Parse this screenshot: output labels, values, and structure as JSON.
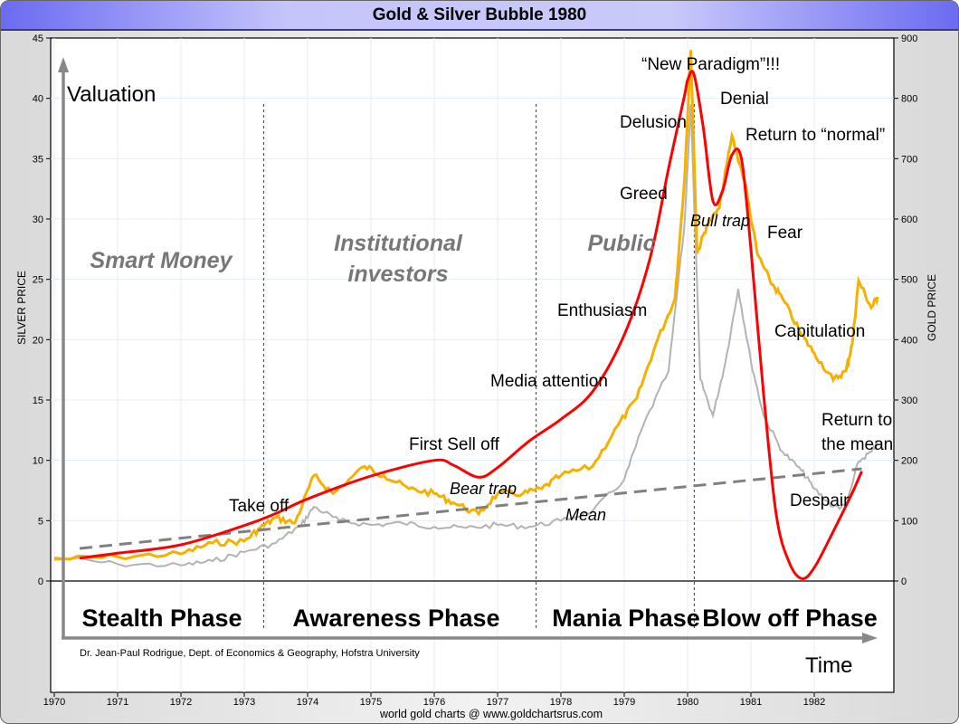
{
  "window": {
    "title": "Gold & Silver Bubble 1980"
  },
  "footer": {
    "source": "world gold charts @ www.goldchartsrus.com"
  },
  "chart_data": {
    "type": "line",
    "title": "Gold & Silver Bubble 1980",
    "xlabel": "",
    "ylabel_left": "SILVER PRICE",
    "ylabel_right": "GOLD PRICE",
    "xlim": [
      1970,
      1983
    ],
    "ylim_left": [
      0,
      45
    ],
    "ylim_right": [
      0,
      900
    ],
    "x_ticks": [
      "1970",
      "1971",
      "1972",
      "1973",
      "1974",
      "1975",
      "1976",
      "1977",
      "1978",
      "1979",
      "1980",
      "1981",
      "1982"
    ],
    "y_ticks_left": [
      "0",
      "5",
      "10",
      "15",
      "20",
      "25",
      "30",
      "35",
      "40",
      "45"
    ],
    "y_ticks_right": [
      "0",
      "100",
      "200",
      "300",
      "400",
      "500",
      "600",
      "700",
      "800",
      "900"
    ],
    "grid": true,
    "series": [
      {
        "name": "Gold",
        "axis": "right",
        "color": "#f5b000",
        "x": [
          1970.0,
          1971.0,
          1972.0,
          1972.5,
          1973.0,
          1973.25,
          1973.5,
          1973.8,
          1974.1,
          1974.4,
          1974.9,
          1975.2,
          1975.6,
          1976.0,
          1976.3,
          1976.7,
          1977.0,
          1977.4,
          1977.7,
          1978.0,
          1978.5,
          1978.9,
          1979.2,
          1979.5,
          1979.8,
          1979.95,
          1980.05,
          1980.15,
          1980.3,
          1980.5,
          1980.7,
          1980.9,
          1981.1,
          1981.3,
          1981.5,
          1981.8,
          1982.0,
          1982.3,
          1982.5,
          1982.6,
          1982.7,
          1982.9,
          1983.0
        ],
        "values": [
          36,
          40,
          45,
          63,
          66,
          88,
          105,
          96,
          175,
          145,
          190,
          175,
          153,
          145,
          130,
          111,
          145,
          145,
          153,
          175,
          190,
          258,
          303,
          393,
          468,
          663,
          880,
          543,
          588,
          618,
          738,
          663,
          543,
          498,
          468,
          408,
          378,
          333,
          348,
          393,
          498,
          453,
          471
        ]
      },
      {
        "name": "Silver",
        "axis": "left",
        "color": "#b3b3b3",
        "x": [
          1970.0,
          1971.0,
          1972.0,
          1972.5,
          1973.0,
          1973.5,
          1973.9,
          1974.1,
          1974.5,
          1975.0,
          1975.5,
          1976.0,
          1976.5,
          1977.0,
          1977.5,
          1978.0,
          1978.5,
          1979.0,
          1979.3,
          1979.7,
          1979.95,
          1980.05,
          1980.2,
          1980.4,
          1980.6,
          1980.8,
          1981.0,
          1981.2,
          1981.5,
          1981.8,
          1982.0,
          1982.3,
          1982.5,
          1982.7,
          1982.9,
          1983.0
        ],
        "values": [
          1.95,
          1.4,
          1.3,
          1.65,
          2.4,
          3.15,
          4.65,
          6.15,
          5.0,
          4.65,
          4.8,
          4.5,
          4.4,
          4.65,
          4.5,
          5.0,
          5.8,
          8.4,
          12.9,
          17.4,
          29.4,
          39.5,
          16.7,
          13.7,
          18.2,
          24.2,
          18.2,
          13.7,
          10.7,
          9.15,
          7.65,
          6.15,
          6.15,
          9.9,
          10.7,
          11.4
        ]
      },
      {
        "name": "Bubble model (valuation)",
        "axis": "left",
        "color": "#ff0000",
        "x": [
          1970.4,
          1971.0,
          1972.0,
          1973.0,
          1973.5,
          1974.0,
          1975.0,
          1976.0,
          1976.3,
          1976.7,
          1977.0,
          1977.5,
          1978.0,
          1978.5,
          1979.0,
          1979.4,
          1979.7,
          1979.95,
          1980.0,
          1980.1,
          1980.25,
          1980.4,
          1980.55,
          1980.7,
          1980.85,
          1981.0,
          1981.2,
          1981.4,
          1981.6,
          1981.8,
          1982.0,
          1982.3,
          1982.6,
          1982.75
        ],
        "values": [
          1.9,
          2.3,
          3.0,
          4.6,
          5.6,
          6.8,
          8.7,
          10.0,
          9.6,
          8.6,
          9.4,
          11.6,
          13.4,
          15.7,
          20.4,
          26.6,
          34.2,
          40.2,
          41.5,
          42.0,
          37.5,
          31.5,
          32.3,
          35.3,
          35.0,
          27.5,
          15.5,
          5.5,
          1.6,
          0.2,
          1.1,
          4.1,
          7.3,
          9.1
        ]
      },
      {
        "name": "Mean",
        "axis": "left",
        "color": "#808080",
        "style": "dashed",
        "x": [
          1970.4,
          1982.75
        ],
        "values": [
          2.7,
          9.3
        ]
      }
    ],
    "phase_dividers": [
      1973.3,
      1977.6,
      1980.1
    ],
    "phases": [
      "Stealth Phase",
      "Awareness Phase",
      "Mania Phase",
      "Blow off Phase"
    ],
    "participants": [
      "Smart Money",
      "Institutional",
      "investors",
      "Public"
    ],
    "schematic_axes": {
      "y": "Valuation",
      "x": "Time"
    },
    "annotations": [
      "Take off",
      "First Sell off",
      "Bear trap",
      "Mean",
      "Media attention",
      "Enthusiasm",
      "Greed",
      "Delusion",
      "“New Paradigm”!!!",
      "Denial",
      "Return to “normal”",
      "Bull trap",
      "Fear",
      "Capitulation",
      "Despair",
      "Return to",
      "the mean"
    ],
    "credit": "Dr. Jean-Paul Rodrigue, Dept. of Economics & Geography, Hofstra University"
  }
}
